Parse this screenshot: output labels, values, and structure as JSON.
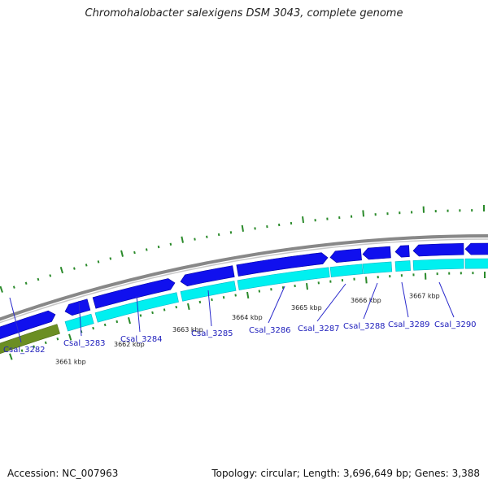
{
  "title": "Chromohalobacter salexigens DSM 3043, complete genome",
  "accession": "Accession: NC_007963",
  "summary": "Topology: circular; Length: 3,696,649 bp; Genes: 3,388",
  "ticks": [
    "3661 kbp",
    "3662 kbp",
    "3663 kbp",
    "3664 kbp",
    "3665 kbp",
    "3666 kbp",
    "3667 kbp"
  ],
  "genes": [
    "Csal_3282",
    "Csal_3283",
    "Csal_3284",
    "Csal_3285",
    "Csal_3286",
    "Csal_3287",
    "Csal_3288",
    "Csal_3289",
    "Csal_3290"
  ],
  "colors": {
    "cds": "#1010ee",
    "gene": "#00f0f0",
    "olive": "#6b8e23",
    "backbone": "#888888",
    "gc": "#2a8a2a",
    "label": "#1c1cbb"
  }
}
